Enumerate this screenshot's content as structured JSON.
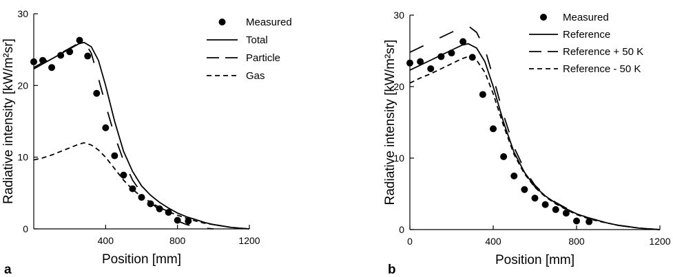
{
  "chart_data": [
    {
      "type": "line",
      "panel_label": "a",
      "xlabel": "Position [mm]",
      "ylabel": "Radiative intensity [kW/m²sr]",
      "xlim": [
        0,
        1200
      ],
      "ylim": [
        0,
        30
      ],
      "xticks": [
        400,
        800,
        1200
      ],
      "yticks": [
        0,
        10,
        20,
        30
      ],
      "grid": false,
      "legend_position": "top-right",
      "series": [
        {
          "name": "Measured",
          "kind": "markers",
          "style": "filled-circle",
          "color": "#000000",
          "x": [
            0,
            50,
            100,
            150,
            200,
            255,
            300,
            350,
            400,
            450,
            500,
            550,
            600,
            650,
            700,
            750,
            800,
            860
          ],
          "y": [
            23.3,
            23.5,
            22.5,
            24.2,
            24.7,
            26.3,
            24.1,
            18.9,
            14.1,
            10.2,
            7.5,
            5.6,
            4.4,
            3.5,
            2.8,
            2.3,
            1.2,
            1.1
          ]
        },
        {
          "name": "Total",
          "kind": "line",
          "dash": "solid",
          "color": "#000000",
          "x": [
            0,
            50,
            100,
            150,
            200,
            250,
            280,
            320,
            360,
            400,
            450,
            500,
            550,
            600,
            650,
            700,
            750,
            800,
            850,
            900,
            950,
            1000,
            1050,
            1100,
            1150,
            1200
          ],
          "y": [
            22.3,
            23.0,
            23.7,
            24.4,
            25.1,
            25.8,
            26.0,
            25.4,
            23.5,
            20.0,
            15.0,
            10.8,
            8.0,
            6.0,
            4.7,
            3.7,
            2.9,
            2.2,
            1.7,
            1.3,
            0.9,
            0.6,
            0.4,
            0.2,
            0.1,
            0.0
          ]
        },
        {
          "name": "Particle",
          "kind": "line",
          "dash": "long-dash",
          "color": "#000000",
          "x": [
            0,
            50,
            100,
            150,
            200,
            250,
            280,
            320,
            360,
            400,
            450,
            500,
            550,
            600,
            650,
            700,
            750,
            800,
            850,
            900,
            950,
            1000
          ],
          "y": [
            22.5,
            23.2,
            23.8,
            24.5,
            25.2,
            25.9,
            26.2,
            24.5,
            21.0,
            17.3,
            13.0,
            9.5,
            6.8,
            5.0,
            3.7,
            2.6,
            1.8,
            1.1,
            0.6,
            0.3,
            0.1,
            0.0
          ]
        },
        {
          "name": "Gas",
          "kind": "line",
          "dash": "short-dash",
          "color": "#000000",
          "x": [
            0,
            50,
            100,
            150,
            200,
            250,
            280,
            320,
            360,
            400,
            450,
            500,
            550,
            600,
            650,
            700,
            750,
            800,
            850,
            900,
            950,
            1000,
            1050,
            1100,
            1150,
            1200
          ],
          "y": [
            9.6,
            9.9,
            10.3,
            10.8,
            11.3,
            11.8,
            12.0,
            11.7,
            11.0,
            10.0,
            8.4,
            6.8,
            5.5,
            4.5,
            3.7,
            3.0,
            2.4,
            1.9,
            1.5,
            1.1,
            0.8,
            0.6,
            0.4,
            0.2,
            0.1,
            0.0
          ]
        }
      ]
    },
    {
      "type": "line",
      "panel_label": "b",
      "xlabel": "Position [mm]",
      "ylabel": "Radiative intensity [kW/m²sr]",
      "xlim": [
        0,
        1200
      ],
      "ylim": [
        0,
        30
      ],
      "xticks": [
        0,
        400,
        800,
        1200
      ],
      "yticks": [
        0,
        10,
        20,
        30
      ],
      "grid": false,
      "legend_position": "top-right",
      "series": [
        {
          "name": "Measured",
          "kind": "markers",
          "style": "filled-circle",
          "color": "#000000",
          "x": [
            0,
            50,
            100,
            150,
            200,
            255,
            300,
            350,
            400,
            450,
            500,
            550,
            600,
            650,
            700,
            750,
            800,
            860
          ],
          "y": [
            23.3,
            23.5,
            22.5,
            24.2,
            24.7,
            26.3,
            24.1,
            18.9,
            14.1,
            10.2,
            7.5,
            5.6,
            4.4,
            3.5,
            2.8,
            2.3,
            1.2,
            1.1
          ]
        },
        {
          "name": "Reference",
          "kind": "line",
          "dash": "solid",
          "color": "#000000",
          "x": [
            0,
            50,
            100,
            150,
            200,
            250,
            280,
            320,
            360,
            400,
            450,
            500,
            550,
            600,
            650,
            700,
            750,
            800,
            850,
            900,
            950,
            1000,
            1050,
            1100,
            1150,
            1200
          ],
          "y": [
            22.3,
            23.0,
            23.7,
            24.4,
            25.1,
            25.8,
            26.0,
            25.4,
            23.5,
            20.0,
            15.0,
            10.8,
            8.0,
            6.0,
            4.7,
            3.7,
            2.9,
            2.2,
            1.7,
            1.3,
            0.9,
            0.6,
            0.4,
            0.2,
            0.1,
            0.0
          ]
        },
        {
          "name": "Reference + 50 K",
          "kind": "line",
          "dash": "long-dash",
          "color": "#000000",
          "x": [
            0,
            50,
            100,
            150,
            200,
            250,
            280,
            320,
            360,
            400,
            450,
            500,
            550,
            600,
            650,
            700,
            750,
            800,
            850,
            900,
            950,
            1000,
            1050,
            1100,
            1150,
            1200
          ],
          "y": [
            24.8,
            25.5,
            26.2,
            26.9,
            27.6,
            28.3,
            28.5,
            27.6,
            25.3,
            21.3,
            16.0,
            11.5,
            8.4,
            6.2,
            4.8,
            3.8,
            3.0,
            2.3,
            1.7,
            1.3,
            0.9,
            0.6,
            0.4,
            0.2,
            0.1,
            0.0
          ]
        },
        {
          "name": "Reference - 50 K",
          "kind": "line",
          "dash": "short-dash",
          "color": "#000000",
          "x": [
            0,
            50,
            100,
            150,
            200,
            250,
            280,
            320,
            360,
            400,
            450,
            500,
            550,
            600,
            650,
            700,
            750,
            800,
            850,
            900,
            950,
            1000,
            1050,
            1100,
            1150,
            1200
          ],
          "y": [
            20.5,
            21.2,
            21.8,
            22.5,
            23.2,
            23.9,
            24.2,
            23.7,
            22.0,
            19.0,
            14.5,
            10.5,
            7.8,
            5.9,
            4.6,
            3.6,
            2.8,
            2.1,
            1.6,
            1.2,
            0.9,
            0.6,
            0.4,
            0.2,
            0.1,
            0.0
          ]
        }
      ]
    }
  ]
}
